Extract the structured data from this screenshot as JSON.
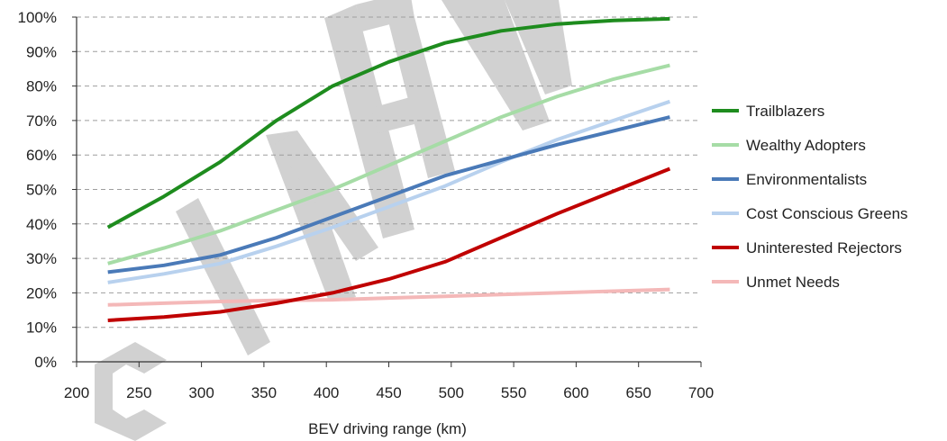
{
  "chart_data": {
    "type": "line",
    "xlabel": "BEV driving range (km)",
    "ylabel": "",
    "xlim": [
      200,
      700
    ],
    "ylim": [
      0,
      100
    ],
    "x_ticks": [
      "200",
      "250",
      "300",
      "350",
      "400",
      "450",
      "500",
      "550",
      "600",
      "650",
      "700"
    ],
    "y_ticks": [
      "0%",
      "10%",
      "20%",
      "30%",
      "40%",
      "50%",
      "60%",
      "70%",
      "80%",
      "90%",
      "100%"
    ],
    "grid": "horizontal dashed",
    "legend_position": "right",
    "x": [
      225,
      270,
      315,
      360,
      405,
      450,
      495,
      540,
      585,
      630,
      675
    ],
    "series": [
      {
        "name": "Trailblazers",
        "color": "#1e8c1e",
        "values": [
          39,
          48,
          58,
          70,
          80,
          87,
          92.5,
          96,
          98,
          99,
          99.5
        ]
      },
      {
        "name": "Wealthy Adopters",
        "color": "#a6dca6",
        "values": [
          28.5,
          33,
          38,
          44,
          50,
          57,
          64,
          71,
          77,
          82,
          86
        ]
      },
      {
        "name": "Environmentalists",
        "color": "#4a7ab8",
        "values": [
          26,
          28,
          31,
          36,
          42,
          48,
          54,
          58.5,
          63,
          67,
          71
        ]
      },
      {
        "name": "Cost Conscious Greens",
        "color": "#b8d1ee",
        "values": [
          23,
          25.5,
          28.5,
          33.5,
          39,
          45,
          51,
          58,
          64.5,
          70,
          75.5
        ]
      },
      {
        "name": "Uninterested Rejectors",
        "color": "#c00000",
        "values": [
          12,
          13,
          14.5,
          17,
          20,
          24,
          29,
          36,
          43,
          49.5,
          56
        ]
      },
      {
        "name": "Unmet Needs",
        "color": "#f4b8b8",
        "values": [
          16.5,
          17,
          17.5,
          17.8,
          18,
          18.5,
          19,
          19.5,
          20,
          20.5,
          21
        ]
      }
    ]
  }
}
